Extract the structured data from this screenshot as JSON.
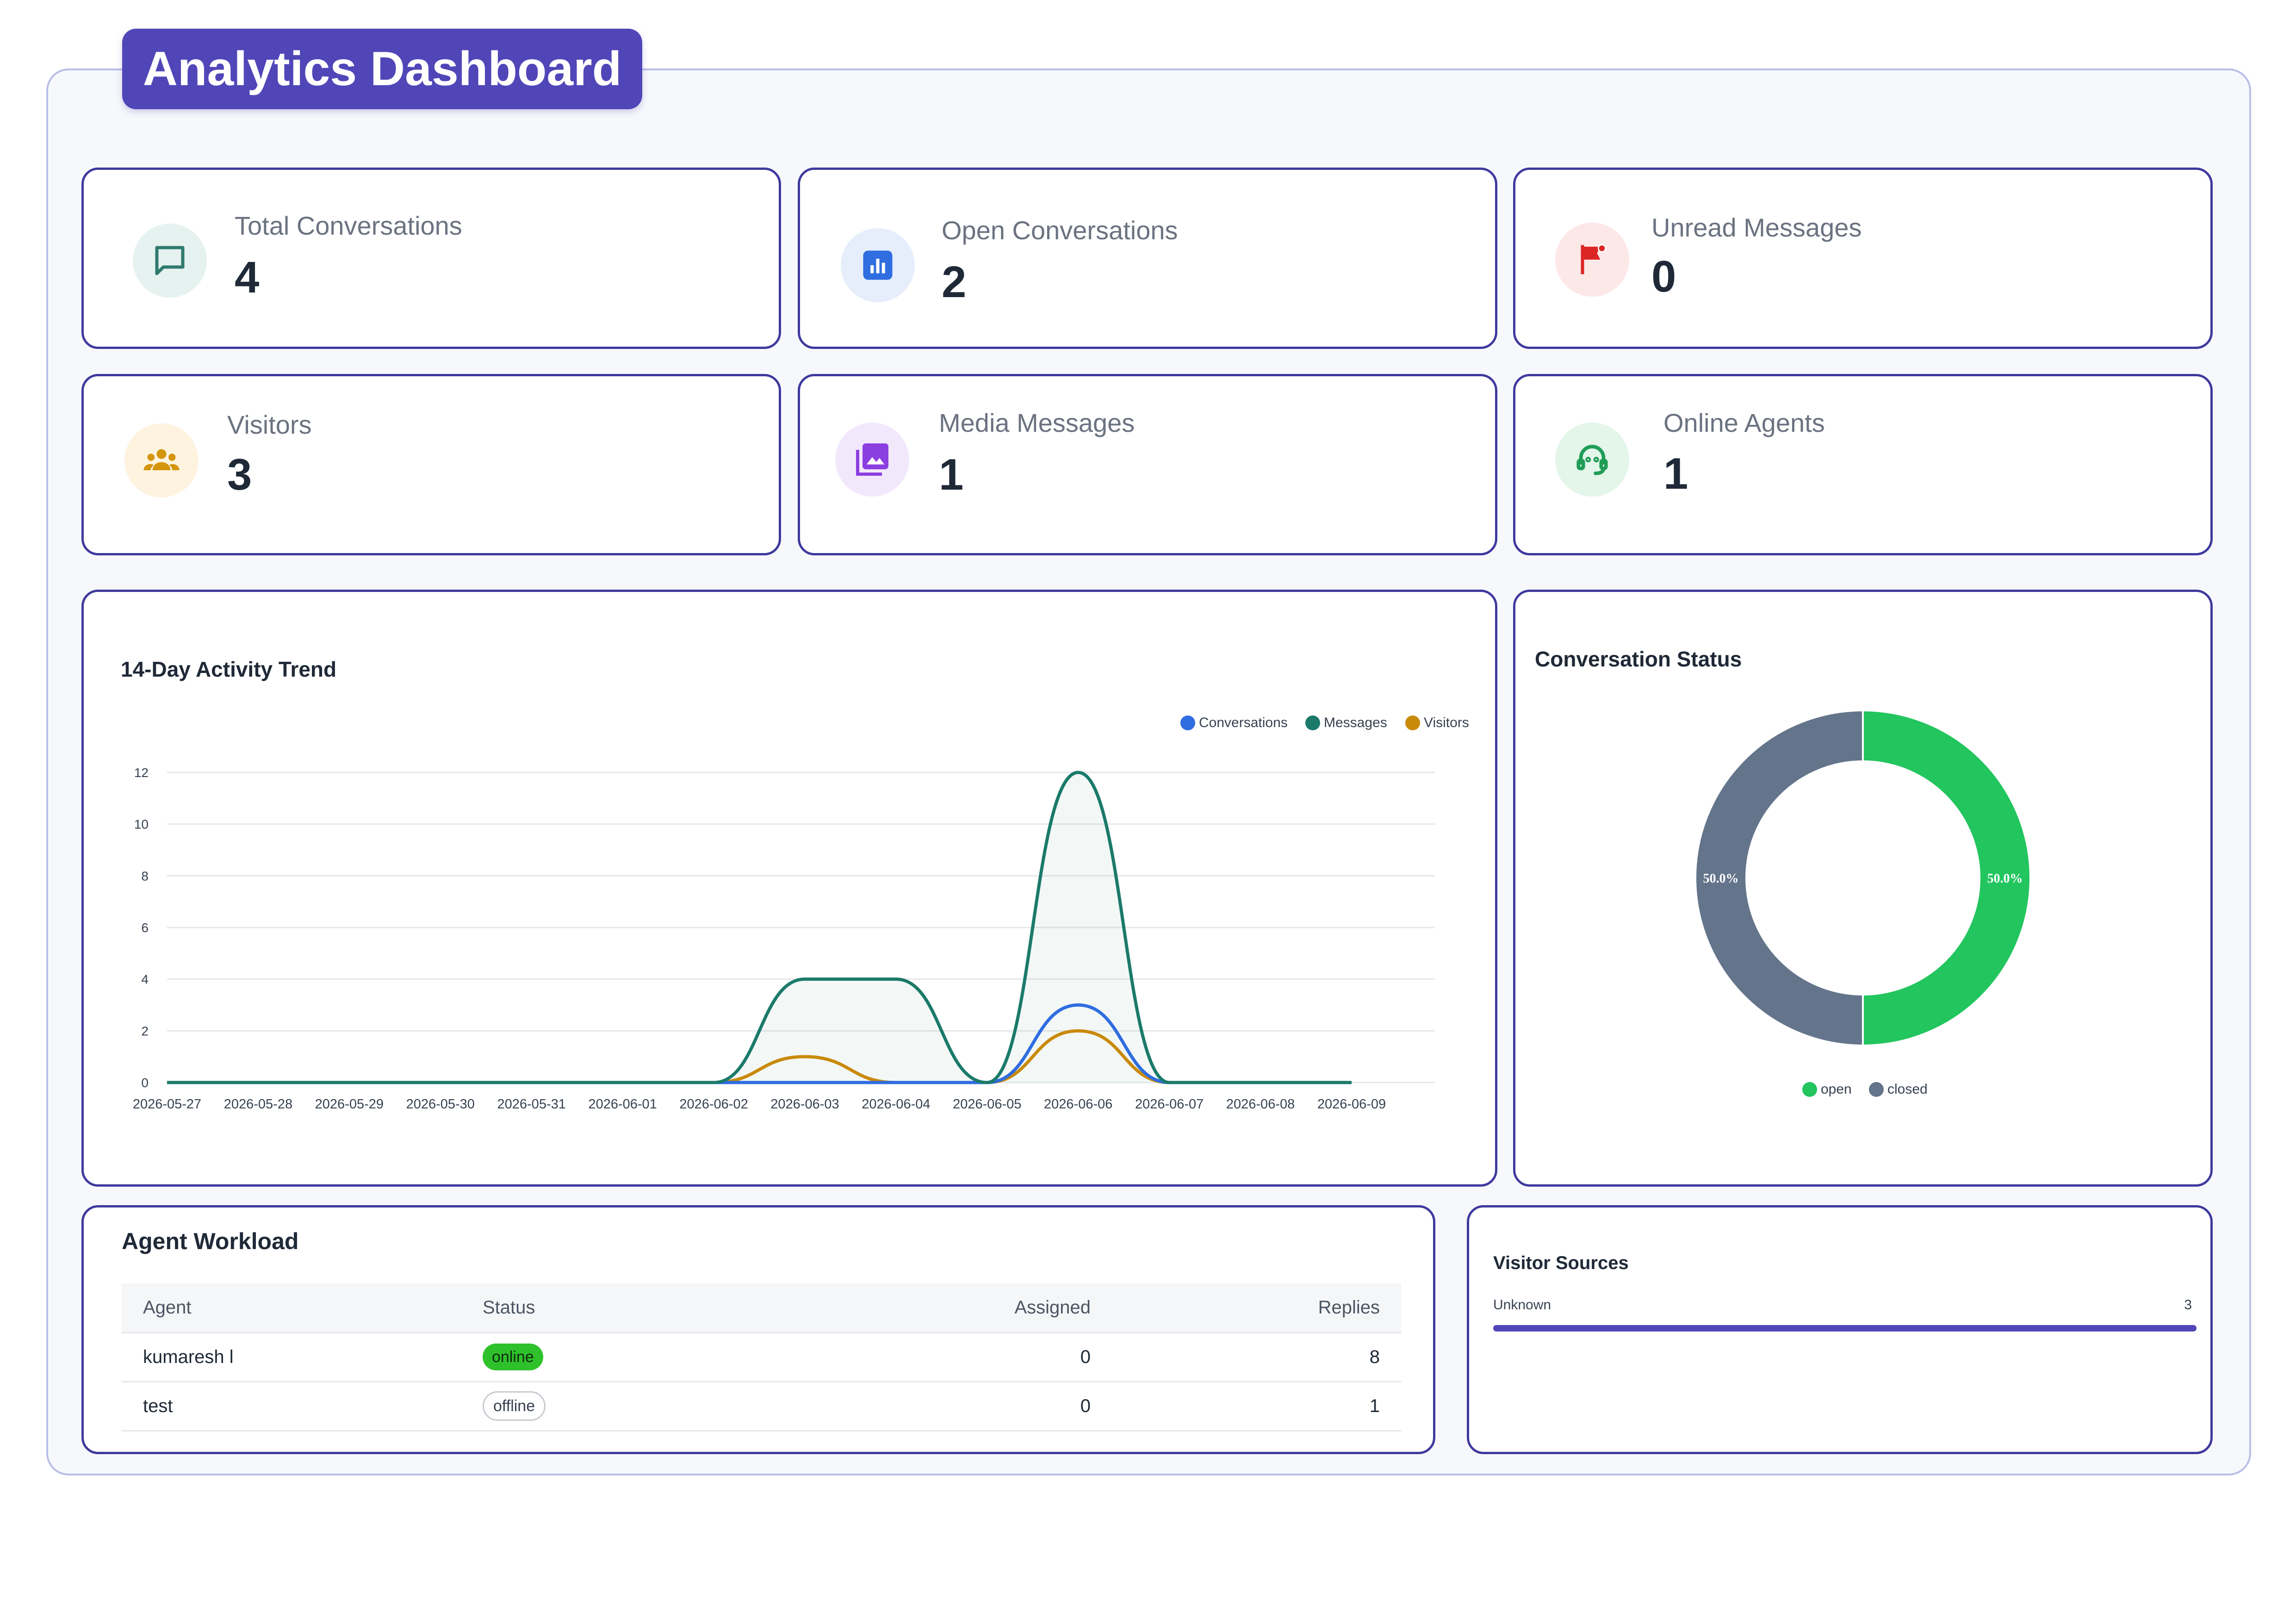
{
  "page": {
    "title": "Analytics Dashboard"
  },
  "stats": [
    {
      "label": "Total Conversations",
      "value": "4",
      "icon": "chat-bubble-icon",
      "icon_color": "#2f7a6e",
      "icon_bg": "#e6f2ef"
    },
    {
      "label": "Open Conversations",
      "value": "2",
      "icon": "bar-chart-icon",
      "icon_color": "#2f6de0",
      "icon_bg": "#e6eefc"
    },
    {
      "label": "Unread Messages",
      "value": "0",
      "icon": "flag-alert-icon",
      "icon_color": "#dc2626",
      "icon_bg": "#fde8e8"
    },
    {
      "label": "Visitors",
      "value": "3",
      "icon": "people-group-icon",
      "icon_color": "#d4940b",
      "icon_bg": "#fdf3df"
    },
    {
      "label": "Media Messages",
      "value": "1",
      "icon": "photo-library-icon",
      "icon_color": "#8b3fe0",
      "icon_bg": "#f2e8fc"
    },
    {
      "label": "Online Agents",
      "value": "1",
      "icon": "support-agent-icon",
      "icon_color": "#1f9d57",
      "icon_bg": "#e4f5ea"
    }
  ],
  "chart_data": [
    {
      "type": "line",
      "title": "14-Day Activity Trend",
      "x": [
        "2026-05-27",
        "2026-05-28",
        "2026-05-29",
        "2026-05-30",
        "2026-05-31",
        "2026-06-01",
        "2026-06-02",
        "2026-06-03",
        "2026-06-04",
        "2026-06-05",
        "2026-06-06",
        "2026-06-07",
        "2026-06-08",
        "2026-06-09"
      ],
      "yticks": [
        "0",
        "2",
        "4",
        "6",
        "8",
        "10",
        "12"
      ],
      "ylim": [
        0,
        12
      ],
      "grid": true,
      "legend_position": "top-right",
      "series": [
        {
          "name": "Conversations",
          "color": "#2f6de0",
          "values": [
            0,
            0,
            0,
            0,
            0,
            0,
            0,
            0,
            0,
            0,
            3,
            0,
            0,
            0
          ]
        },
        {
          "name": "Messages",
          "color": "#1b7a6a",
          "values": [
            0,
            0,
            0,
            0,
            0,
            0,
            0,
            4,
            4,
            0,
            12,
            0,
            0,
            0
          ]
        },
        {
          "name": "Visitors",
          "color": "#c98a0a",
          "values": [
            0,
            0,
            0,
            0,
            0,
            0,
            0,
            1,
            0,
            0,
            2,
            0,
            0,
            0
          ]
        }
      ]
    },
    {
      "type": "pie",
      "title": "Conversation Status",
      "donut": true,
      "legend_position": "bottom",
      "slices": [
        {
          "name": "open",
          "value": 50.0,
          "label": "50.0%",
          "color": "#22c55e"
        },
        {
          "name": "closed",
          "value": 50.0,
          "label": "50.0%",
          "color": "#64748b"
        }
      ]
    }
  ],
  "agent_workload": {
    "title": "Agent Workload",
    "columns": [
      "Agent",
      "Status",
      "Assigned",
      "Replies"
    ],
    "rows": [
      {
        "agent": "kumaresh l",
        "status": "online",
        "assigned": "0",
        "replies": "8"
      },
      {
        "agent": "test",
        "status": "offline",
        "assigned": "0",
        "replies": "1"
      }
    ]
  },
  "visitor_sources": {
    "title": "Visitor Sources",
    "items": [
      {
        "label": "Unknown",
        "count": "3",
        "fraction": 1.0,
        "color": "#5146b8"
      }
    ]
  }
}
